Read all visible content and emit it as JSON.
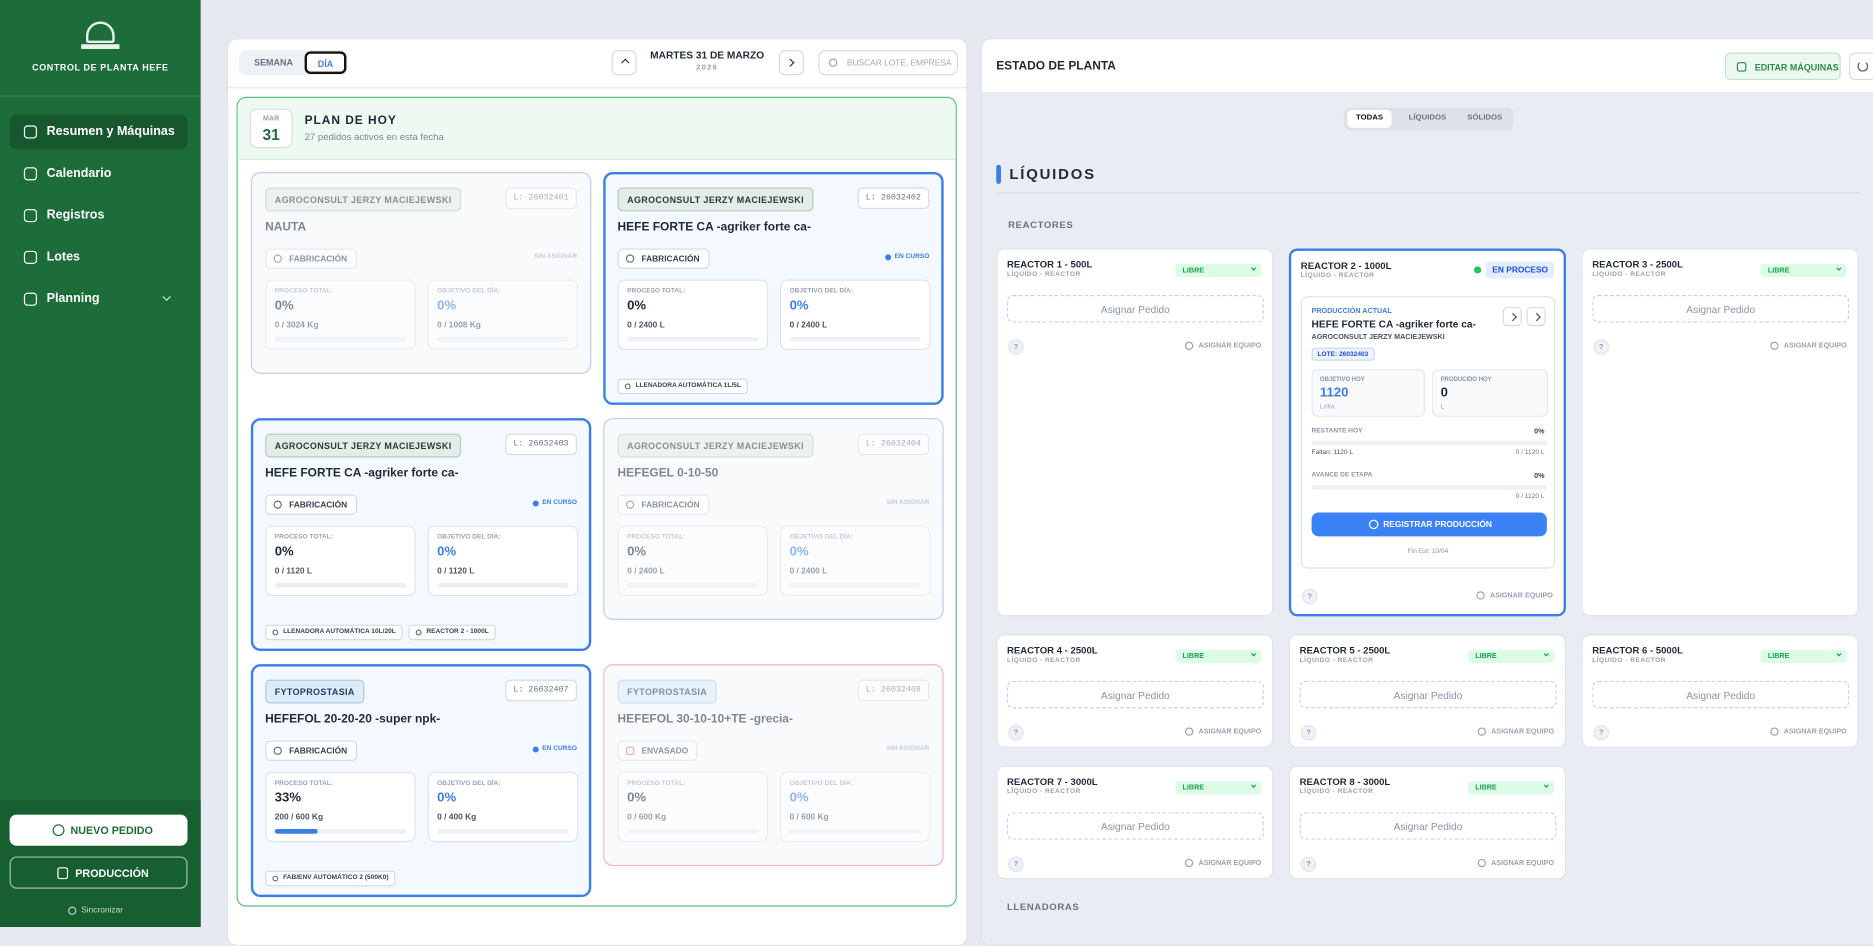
{
  "sidebar": {
    "brand": "CONTROL DE PLANTA HEFE",
    "nav": [
      "Resumen y Máquinas",
      "Calendario",
      "Registros",
      "Lotes",
      "Planning"
    ],
    "new_order": "NUEVO PEDIDO",
    "production": "PRODUCCIÓN",
    "sync": "Sincronizar"
  },
  "plan": {
    "view_toggle": [
      "SEMANA",
      "DÍA"
    ],
    "date": "MARTES 31 DE MARZO",
    "year": 2026,
    "search_placeholder": "BUSCAR LOTE, EMPRESA",
    "badge_month": "MAR",
    "badge_day": 31,
    "title": "PLAN DE HOY",
    "subtitle": "27 pedidos activos en esta fecha",
    "labels": {
      "process": "PROCESO TOTAL:",
      "objective": "OBJETIVO DEL DÍA:"
    },
    "orders": [
      {
        "client": "AGROCONSULT JERZY MACIEJEWSKI",
        "lot": "L: 26032401",
        "product": "NAUTA",
        "stage": "FABRICACIÓN",
        "status": "SIN ASIGNAR",
        "process_pct": "0%",
        "process_amount": "0 / 3024 Kg",
        "objective_pct": "0%",
        "objective_amount": "0 / 1008 Kg",
        "machines": []
      },
      {
        "client": "AGROCONSULT JERZY MACIEJEWSKI",
        "lot": "L: 26032402",
        "product": "HEFE FORTE CA -agriker forte ca-",
        "stage": "FABRICACIÓN",
        "status": "EN CURSO",
        "process_pct": "0%",
        "process_amount": "0 / 2400 L",
        "objective_pct": "0%",
        "objective_amount": "0 / 2400 L",
        "machines": [
          "LLENADORA AUTOMÁTICA 1L/5L"
        ]
      },
      {
        "client": "AGROCONSULT JERZY MACIEJEWSKI",
        "lot": "L: 26032403",
        "product": "HEFE FORTE CA -agriker forte ca-",
        "stage": "FABRICACIÓN",
        "status": "EN CURSO",
        "process_pct": "0%",
        "process_amount": "0 / 1120 L",
        "objective_pct": "0%",
        "objective_amount": "0 / 1120 L",
        "machines": [
          "LLENADORA AUTOMÁTICA 10L/20L",
          "REACTOR 2 - 1000L"
        ]
      },
      {
        "client": "AGROCONSULT JERZY MACIEJEWSKI",
        "lot": "L: 26032404",
        "product": "HEFEGEL 0-10-50",
        "stage": "FABRICACIÓN",
        "status": "SIN ASIGNAR",
        "process_pct": "0%",
        "process_amount": "0 / 2400 L",
        "objective_pct": "0%",
        "objective_amount": "0 / 2400 L",
        "machines": []
      },
      {
        "client": "FYTOPROSTASIA",
        "lot": "L: 26032407",
        "product": "HEFEFOL 20-20-20 -super npk-",
        "stage": "FABRICACIÓN",
        "status": "EN CURSO",
        "process_pct": "33%",
        "process_amount": "200 / 600 Kg",
        "objective_pct": "0%",
        "objective_amount": "0 / 400 Kg",
        "machines": [
          "FAB/ENV AUTOMÁTICO 2 (500K0)"
        ]
      },
      {
        "client": "FYTOPROSTASIA",
        "lot": "L: 26032408",
        "product": "HEFEFOL 30-10-10+TE -grecia-",
        "stage": "ENVASADO",
        "status": "SIN ASIGNAR",
        "process_pct": "0%",
        "process_amount": "0 / 600 Kg",
        "objective_pct": "0%",
        "objective_amount": "0 / 600 Kg",
        "machines": []
      }
    ]
  },
  "plant": {
    "title": "ESTADO DE PLANTA",
    "edit": "EDITAR MÁQUINAS",
    "tabs": [
      "TODAS",
      "LÍQUIDOS",
      "SÓLIDOS"
    ],
    "section": "LÍQUIDOS",
    "subsection": "REACTORES",
    "next_subsection": "LLENADORAS",
    "reactor_type": "LÍQUIDO - REACTOR",
    "assign_order": "Asignar Pedido",
    "assign_team": "ASIGNAR EQUIPO",
    "help": "?",
    "reactors": [
      {
        "name": "REACTOR 1 - 500L",
        "status": "LIBRE"
      },
      {
        "name": "REACTOR 2 - 1000L",
        "status": "EN PROCESO",
        "current": {
          "label": "PRODUCCIÓN ACTUAL",
          "product": "HEFE FORTE CA -agriker forte ca-",
          "client": "AGROCONSULT JERZY MACIEJEWSKI",
          "lot": "LOTE: 26032403",
          "target_label": "OBJETIVO HOY",
          "target": 1120,
          "target_unit": "L/día",
          "produced_label": "PRODUCIDO HOY",
          "produced": 0,
          "produced_unit": "L",
          "remaining_label": "RESTANTE HOY",
          "remaining_pct": "0%",
          "missing": "Faltan: 1120 L",
          "remaining_amount": "0 / 1120 L",
          "stage_label": "AVANCE DE ETAPA",
          "stage_pct": "0%",
          "stage_amount": "0 / 1120 L",
          "register": "REGISTRAR PRODUCCIÓN",
          "end_estimate": "Fin Est: 10/04"
        }
      },
      {
        "name": "REACTOR 3 - 2500L",
        "status": "LIBRE"
      },
      {
        "name": "REACTOR 4 - 2500L",
        "status": "LIBRE"
      },
      {
        "name": "REACTOR 5 - 2500L",
        "status": "LIBRE"
      },
      {
        "name": "REACTOR 6 - 5000L",
        "status": "LIBRE"
      },
      {
        "name": "REACTOR 7 - 3000L",
        "status": "LIBRE"
      },
      {
        "name": "REACTOR 8 - 3000L",
        "status": "LIBRE"
      }
    ]
  }
}
